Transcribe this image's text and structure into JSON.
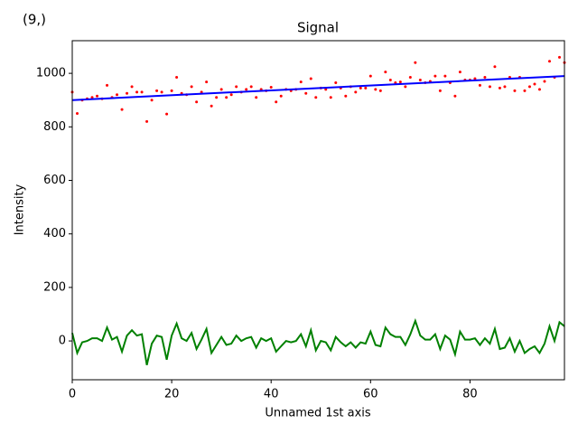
{
  "chart_data": {
    "type": "line",
    "title": "Signal",
    "annotation": "(9,)",
    "annotation_color": "#ff0000",
    "xlabel": "Unnamed 1st axis",
    "ylabel": "Intensity",
    "x": [
      0,
      1,
      2,
      3,
      4,
      5,
      6,
      7,
      8,
      9,
      10,
      11,
      12,
      13,
      14,
      15,
      16,
      17,
      18,
      19,
      20,
      21,
      22,
      23,
      24,
      25,
      26,
      27,
      28,
      29,
      30,
      31,
      32,
      33,
      34,
      35,
      36,
      37,
      38,
      39,
      40,
      41,
      42,
      43,
      44,
      45,
      46,
      47,
      48,
      49,
      50,
      51,
      52,
      53,
      54,
      55,
      56,
      57,
      58,
      59,
      60,
      61,
      62,
      63,
      64,
      65,
      66,
      67,
      68,
      69,
      70,
      71,
      72,
      73,
      74,
      75,
      76,
      77,
      78,
      79,
      80,
      81,
      82,
      83,
      84,
      85,
      86,
      87,
      88,
      89,
      90,
      91,
      92,
      93,
      94,
      95,
      96,
      97,
      98,
      99
    ],
    "series": [
      {
        "kind": "scatter",
        "color": "#ff0000",
        "values": [
          930,
          850,
          900,
          905,
          910,
          915,
          905,
          955,
          910,
          920,
          865,
          925,
          950,
          930,
          930,
          820,
          900,
          935,
          930,
          848,
          935,
          985,
          925,
          920,
          950,
          893,
          930,
          968,
          878,
          910,
          940,
          910,
          920,
          950,
          930,
          940,
          950,
          910,
          940,
          935,
          948,
          893,
          915,
          940,
          935,
          940,
          968,
          925,
          980,
          910,
          945,
          940,
          910,
          965,
          945,
          915,
          950,
          930,
          945,
          945,
          990,
          940,
          935,
          1005,
          975,
          965,
          968,
          950,
          985,
          1040,
          975,
          965,
          970,
          990,
          935,
          990,
          965,
          915,
          1005,
          975,
          975,
          980,
          955,
          985,
          950,
          1025,
          945,
          950,
          985,
          935,
          985,
          935,
          950,
          960,
          940,
          970,
          1045,
          985,
          1060,
          1040
        ]
      },
      {
        "kind": "line",
        "color": "#008000",
        "values": [
          30,
          -45,
          -5,
          0,
          10,
          10,
          0,
          50,
          5,
          15,
          -40,
          20,
          40,
          20,
          25,
          -90,
          -10,
          20,
          15,
          -70,
          20,
          65,
          10,
          0,
          30,
          -30,
          5,
          45,
          -45,
          -15,
          15,
          -15,
          -10,
          20,
          0,
          10,
          15,
          -25,
          10,
          0,
          10,
          -40,
          -20,
          0,
          -5,
          0,
          25,
          -20,
          40,
          -35,
          0,
          -5,
          -35,
          15,
          -5,
          -20,
          -5,
          -25,
          -5,
          -10,
          35,
          -15,
          -20,
          50,
          25,
          15,
          15,
          -15,
          25,
          75,
          20,
          5,
          5,
          25,
          -30,
          20,
          5,
          -50,
          35,
          5,
          5,
          10,
          -15,
          10,
          -10,
          45,
          -30,
          -25,
          10,
          -40,
          0,
          -45,
          -30,
          -20,
          -45,
          -10,
          55,
          0,
          70,
          55
        ]
      },
      {
        "kind": "line",
        "color": "#0000ff",
        "x": [
          0,
          99
        ],
        "values": [
          900,
          990
        ]
      }
    ],
    "xlim": [
      0,
      99
    ],
    "ylim": [
      -145,
      1122
    ],
    "xticks": [
      0,
      20,
      40,
      60,
      80
    ],
    "yticks": [
      0,
      200,
      400,
      600,
      800,
      1000
    ],
    "grid": false
  }
}
